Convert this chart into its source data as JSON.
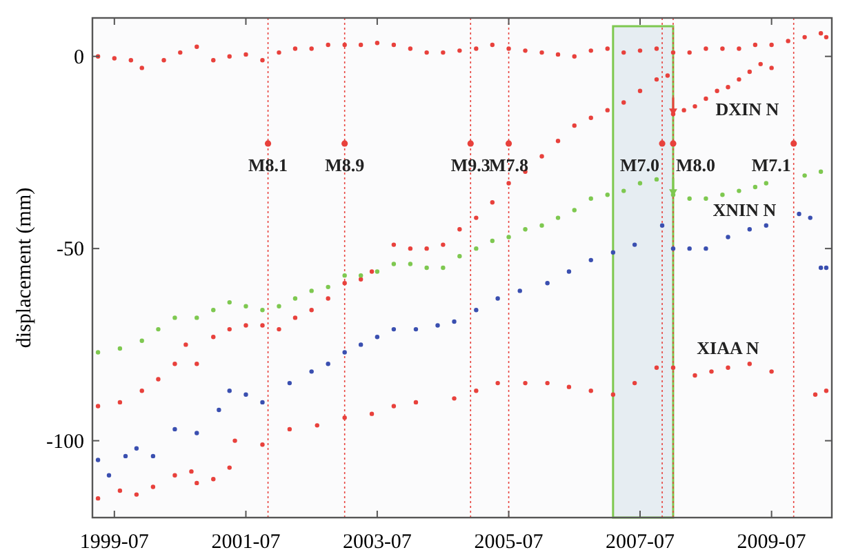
{
  "chart_data": {
    "type": "scatter",
    "ylabel": "displacement (mm)",
    "xlim": [
      "1999-03",
      "2010-06"
    ],
    "ylim": [
      -120,
      10
    ],
    "xticks": [
      "1999-07",
      "2001-07",
      "2003-07",
      "2005-07",
      "2007-07",
      "2009-07"
    ],
    "yticks": [
      0,
      -50,
      -100
    ],
    "grid": false,
    "marker": "circle",
    "series": [
      {
        "color": "#e8413c",
        "x": [
          "1999-04",
          "1999-07",
          "1999-10",
          "1999-12",
          "2000-04",
          "2000-07",
          "2000-10",
          "2001-01",
          "2001-04",
          "2001-07",
          "2001-10",
          "2002-01",
          "2002-04",
          "2002-07",
          "2002-10",
          "2003-01",
          "2003-04",
          "2003-07",
          "2003-10",
          "2004-01",
          "2004-04",
          "2004-07",
          "2004-10",
          "2005-01",
          "2005-04",
          "2005-07",
          "2005-10",
          "2006-01",
          "2006-04",
          "2006-07",
          "2006-10",
          "2007-01",
          "2007-04",
          "2007-07",
          "2007-10",
          "2008-01",
          "2008-04",
          "2008-07",
          "2008-10",
          "2009-01",
          "2009-04",
          "2009-07",
          "2009-10",
          "2010-01",
          "2010-04",
          "2010-05"
        ],
        "values": [
          0,
          -0.5,
          -1,
          -3,
          -1,
          1,
          2.5,
          -1,
          0,
          0.5,
          -1,
          1,
          2,
          2,
          3,
          3,
          3,
          3.5,
          3,
          2,
          1,
          1,
          1.5,
          2,
          3,
          2,
          1.5,
          1,
          0.5,
          0,
          1.5,
          2,
          1,
          1.5,
          2,
          1,
          1,
          2,
          2,
          2,
          3,
          3,
          4,
          5,
          6,
          5
        ]
      },
      {
        "name": "DXIN N",
        "color": "#e8413c",
        "x": [
          "1999-04",
          "1999-08",
          "1999-12",
          "2000-03",
          "2000-06",
          "2000-08",
          "2000-10",
          "2001-01",
          "2001-04",
          "2001-07",
          "2001-10",
          "2002-01",
          "2002-04",
          "2002-07",
          "2002-10",
          "2003-01",
          "2003-04",
          "2003-06",
          "2003-10",
          "2004-01",
          "2004-04",
          "2004-07",
          "2004-10",
          "2005-01",
          "2005-04",
          "2005-07",
          "2005-10",
          "2006-01",
          "2006-04",
          "2006-07",
          "2006-10",
          "2007-01",
          "2007-04",
          "2007-07",
          "2007-10",
          "2007-12",
          "2008-01",
          "2008-03",
          "2008-05",
          "2008-07",
          "2008-09",
          "2008-11",
          "2009-01",
          "2009-03",
          "2009-05",
          "2009-07"
        ],
        "values": [
          -91,
          -90,
          -87,
          -84,
          -80,
          -75,
          -80,
          -73,
          -71,
          -70,
          -70,
          -71,
          -68,
          -66,
          -63,
          -59,
          -58,
          -56,
          -49,
          -50,
          -50,
          -49,
          -45,
          -42,
          -38,
          -33,
          -30,
          -26,
          -22,
          -18,
          -16,
          -14,
          -12,
          -9,
          -6,
          -5,
          -15,
          -14,
          -13,
          -11,
          -9,
          -8,
          -6,
          -4,
          -2,
          -3
        ]
      },
      {
        "name": "XNIN N",
        "color": "#7ec850",
        "x": [
          "1999-04",
          "1999-08",
          "1999-12",
          "2000-03",
          "2000-06",
          "2000-10",
          "2001-01",
          "2001-04",
          "2001-07",
          "2001-10",
          "2002-01",
          "2002-04",
          "2002-07",
          "2002-10",
          "2003-01",
          "2003-04",
          "2003-07",
          "2003-10",
          "2004-01",
          "2004-04",
          "2004-07",
          "2004-10",
          "2005-01",
          "2005-04",
          "2005-07",
          "2005-10",
          "2006-01",
          "2006-04",
          "2006-07",
          "2006-10",
          "2007-01",
          "2007-04",
          "2007-07",
          "2007-10",
          "2008-01",
          "2008-04",
          "2008-07",
          "2008-10",
          "2009-01",
          "2009-04",
          "2009-06",
          "2010-01",
          "2010-04"
        ],
        "values": [
          -77,
          -76,
          -74,
          -71,
          -68,
          -68,
          -66,
          -64,
          -65,
          -66,
          -65,
          -63,
          -61,
          -60,
          -57,
          -57,
          -56,
          -54,
          -54,
          -55,
          -55,
          -52,
          -50,
          -48,
          -47,
          -45,
          -44,
          -42,
          -40,
          -37,
          -36,
          -35,
          -33,
          -32,
          -36,
          -37,
          -37,
          -36,
          -35,
          -34,
          -33,
          -31,
          -30
        ]
      },
      {
        "color": "#3a4fb0",
        "x": [
          "1999-04",
          "1999-06",
          "1999-09",
          "1999-11",
          "2000-02",
          "2000-06",
          "2000-10",
          "2001-02",
          "2001-04",
          "2001-07",
          "2001-10",
          "2002-03",
          "2002-07",
          "2002-10",
          "2003-01",
          "2003-04",
          "2003-07",
          "2003-10",
          "2004-02",
          "2004-06",
          "2004-09",
          "2005-01",
          "2005-05",
          "2005-09",
          "2006-02",
          "2006-06",
          "2006-10",
          "2007-02",
          "2007-06",
          "2007-11",
          "2008-01",
          "2008-04",
          "2008-07",
          "2008-11",
          "2009-03",
          "2009-06",
          "2009-12",
          "2010-02",
          "2010-04",
          "2010-05"
        ],
        "values": [
          -105,
          -109,
          -104,
          -102,
          -104,
          -97,
          -98,
          -92,
          -87,
          -88,
          -90,
          -85,
          -82,
          -80,
          -77,
          -75,
          -73,
          -71,
          -71,
          -70,
          -69,
          -66,
          -63,
          -61,
          -59,
          -56,
          -53,
          -51,
          -49,
          -44,
          -50,
          -50,
          -50,
          -47,
          -45,
          -44,
          -41,
          -42,
          -55,
          -55
        ]
      },
      {
        "name": "XIAA N",
        "color": "#e8413c",
        "x": [
          "1999-04",
          "1999-08",
          "1999-11",
          "2000-02",
          "2000-06",
          "2000-09",
          "2000-10",
          "2001-01",
          "2001-04",
          "2001-05",
          "2001-10",
          "2002-03",
          "2002-08",
          "2003-01",
          "2003-06",
          "2003-10",
          "2004-02",
          "2004-09",
          "2005-01",
          "2005-05",
          "2005-10",
          "2006-02",
          "2006-06",
          "2006-10",
          "2007-02",
          "2007-06",
          "2007-10",
          "2008-01",
          "2008-05",
          "2008-08",
          "2008-11",
          "2009-03",
          "2009-07",
          "2010-03",
          "2010-05"
        ],
        "values": [
          -115,
          -113,
          -114,
          -112,
          -109,
          -108,
          -111,
          -110,
          -107,
          -100,
          -101,
          -97,
          -96,
          -94,
          -93,
          -91,
          -90,
          -89,
          -87,
          -85,
          -85,
          -85,
          -86,
          -87,
          -88,
          -85,
          -81,
          -81,
          -83,
          -82,
          -81,
          -80,
          -82,
          -88,
          -87
        ]
      }
    ],
    "ref_lines": [
      {
        "axis": "x",
        "value": "2001-11",
        "label": "M8.1",
        "color": "#e8413c",
        "line_style": "dotted"
      },
      {
        "axis": "x",
        "value": "2003-01",
        "label": "M8.9",
        "color": "#e8413c",
        "line_style": "dotted"
      },
      {
        "axis": "x",
        "value": "2004-12",
        "label": "M9.3",
        "color": "#e8413c",
        "line_style": "dotted"
      },
      {
        "axis": "x",
        "value": "2005-07",
        "label": "M7.8",
        "color": "#e8413c",
        "line_style": "dotted"
      },
      {
        "axis": "x",
        "value": "2007-11",
        "label": "M7.0",
        "color": "#e8413c",
        "line_style": "dotted"
      },
      {
        "axis": "x",
        "value": "2008-01",
        "label": "M8.0",
        "color": "#e8413c",
        "line_style": "dotted"
      },
      {
        "axis": "x",
        "value": "2009-11",
        "label": "M7.1",
        "color": "#e8413c",
        "line_style": "dotted"
      }
    ],
    "bands": [
      {
        "axis": "x",
        "from": "2007-02",
        "to": "2008-01",
        "color": "#7ec850"
      }
    ]
  }
}
